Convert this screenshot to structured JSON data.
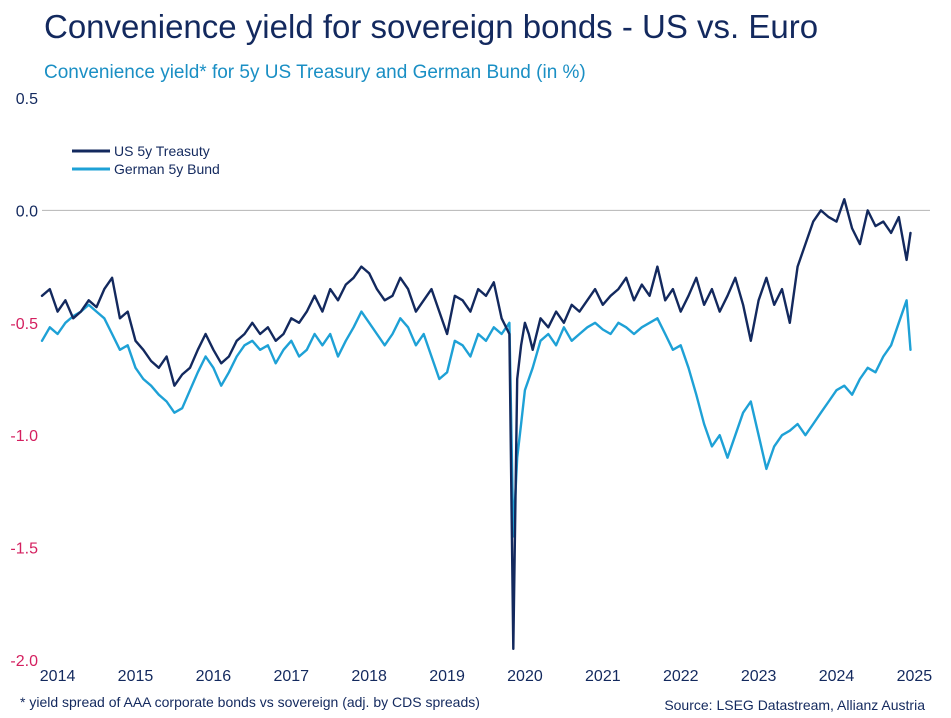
{
  "title": "Convenience yield for sovereign bonds - US vs. Euro",
  "subtitle": "Convenience yield* for 5y US Treasury and German Bund (in %)",
  "footnote": "* yield spread of AAA corporate bonds vs sovereign (adj. by CDS spreads)",
  "source": "Source: LSEG Datastream, Allianz Austria",
  "colors": {
    "us": "#13295e",
    "de": "#1ea1d6",
    "positive_tick": "#13295e",
    "negative_tick": "#d41f5f",
    "zero_line": "#b5b5b5"
  },
  "chart_data": {
    "type": "line",
    "xlabel": "",
    "ylabel": "",
    "xlim": [
      2013.8,
      2025.2
    ],
    "ylim": [
      -2.0,
      0.5
    ],
    "y_ticks": [
      "0.5",
      "0.0",
      "-0.5",
      "-1.0",
      "-1.5",
      "-2.0"
    ],
    "y_tick_values": [
      0.5,
      0.0,
      -0.5,
      -1.0,
      -1.5,
      -2.0
    ],
    "x_ticks": [
      "2014",
      "2015",
      "2016",
      "2017",
      "2018",
      "2019",
      "2020",
      "2021",
      "2022",
      "2023",
      "2024",
      "2025"
    ],
    "x_tick_values": [
      2014,
      2015,
      2016,
      2017,
      2018,
      2019,
      2020,
      2021,
      2022,
      2023,
      2024,
      2025
    ],
    "legend_position": "top-left",
    "series": [
      {
        "name": "US 5y Treasuty",
        "x": [
          2013.8,
          2013.9,
          2014.0,
          2014.1,
          2014.2,
          2014.3,
          2014.4,
          2014.5,
          2014.6,
          2014.7,
          2014.8,
          2014.9,
          2015.0,
          2015.1,
          2015.2,
          2015.3,
          2015.4,
          2015.5,
          2015.6,
          2015.7,
          2015.8,
          2015.9,
          2016.0,
          2016.1,
          2016.2,
          2016.3,
          2016.4,
          2016.5,
          2016.6,
          2016.7,
          2016.8,
          2016.9,
          2017.0,
          2017.1,
          2017.2,
          2017.3,
          2017.4,
          2017.5,
          2017.6,
          2017.7,
          2017.8,
          2017.9,
          2018.0,
          2018.1,
          2018.2,
          2018.3,
          2018.4,
          2018.5,
          2018.6,
          2018.7,
          2018.8,
          2018.9,
          2019.0,
          2019.1,
          2019.2,
          2019.3,
          2019.4,
          2019.5,
          2019.6,
          2019.7,
          2019.8,
          2019.85,
          2019.9,
          2019.95,
          2020.0,
          2020.05,
          2020.1,
          2020.2,
          2020.3,
          2020.4,
          2020.5,
          2020.6,
          2020.7,
          2020.8,
          2020.9,
          2021.0,
          2021.1,
          2021.2,
          2021.3,
          2021.4,
          2021.5,
          2021.6,
          2021.7,
          2021.8,
          2021.9,
          2022.0,
          2022.1,
          2022.2,
          2022.3,
          2022.4,
          2022.5,
          2022.6,
          2022.7,
          2022.8,
          2022.9,
          2023.0,
          2023.1,
          2023.2,
          2023.3,
          2023.4,
          2023.5,
          2023.6,
          2023.7,
          2023.8,
          2023.9,
          2024.0,
          2024.1,
          2024.2,
          2024.3,
          2024.4,
          2024.5,
          2024.6,
          2024.7,
          2024.8,
          2024.9,
          2024.95
        ],
        "values": [
          -0.38,
          -0.35,
          -0.45,
          -0.4,
          -0.48,
          -0.45,
          -0.4,
          -0.43,
          -0.35,
          -0.3,
          -0.48,
          -0.45,
          -0.58,
          -0.62,
          -0.67,
          -0.7,
          -0.65,
          -0.78,
          -0.73,
          -0.7,
          -0.62,
          -0.55,
          -0.62,
          -0.68,
          -0.65,
          -0.58,
          -0.55,
          -0.5,
          -0.55,
          -0.52,
          -0.58,
          -0.55,
          -0.48,
          -0.5,
          -0.45,
          -0.38,
          -0.45,
          -0.35,
          -0.4,
          -0.33,
          -0.3,
          -0.25,
          -0.28,
          -0.35,
          -0.4,
          -0.38,
          -0.3,
          -0.35,
          -0.45,
          -0.4,
          -0.35,
          -0.45,
          -0.55,
          -0.38,
          -0.4,
          -0.45,
          -0.35,
          -0.38,
          -0.32,
          -0.48,
          -0.55,
          -1.95,
          -0.75,
          -0.6,
          -0.5,
          -0.55,
          -0.62,
          -0.48,
          -0.52,
          -0.45,
          -0.5,
          -0.42,
          -0.45,
          -0.4,
          -0.35,
          -0.42,
          -0.38,
          -0.35,
          -0.3,
          -0.4,
          -0.33,
          -0.38,
          -0.25,
          -0.4,
          -0.35,
          -0.45,
          -0.38,
          -0.3,
          -0.42,
          -0.35,
          -0.45,
          -0.38,
          -0.3,
          -0.42,
          -0.58,
          -0.4,
          -0.3,
          -0.42,
          -0.35,
          -0.5,
          -0.25,
          -0.15,
          -0.05,
          0.0,
          -0.03,
          -0.05,
          0.05,
          -0.08,
          -0.15,
          0.0,
          -0.07,
          -0.05,
          -0.1,
          -0.03,
          -0.22,
          -0.1
        ]
      },
      {
        "name": "German 5y Bund",
        "x": [
          2013.8,
          2013.9,
          2014.0,
          2014.1,
          2014.2,
          2014.3,
          2014.4,
          2014.5,
          2014.6,
          2014.7,
          2014.8,
          2014.9,
          2015.0,
          2015.1,
          2015.2,
          2015.3,
          2015.4,
          2015.5,
          2015.6,
          2015.7,
          2015.8,
          2015.9,
          2016.0,
          2016.1,
          2016.2,
          2016.3,
          2016.4,
          2016.5,
          2016.6,
          2016.7,
          2016.8,
          2016.9,
          2017.0,
          2017.1,
          2017.2,
          2017.3,
          2017.4,
          2017.5,
          2017.6,
          2017.7,
          2017.8,
          2017.9,
          2018.0,
          2018.1,
          2018.2,
          2018.3,
          2018.4,
          2018.5,
          2018.6,
          2018.7,
          2018.8,
          2018.9,
          2019.0,
          2019.1,
          2019.2,
          2019.3,
          2019.4,
          2019.5,
          2019.6,
          2019.7,
          2019.8,
          2019.85,
          2019.9,
          2019.95,
          2020.0,
          2020.05,
          2020.1,
          2020.2,
          2020.3,
          2020.4,
          2020.5,
          2020.6,
          2020.7,
          2020.8,
          2020.9,
          2021.0,
          2021.1,
          2021.2,
          2021.3,
          2021.4,
          2021.5,
          2021.6,
          2021.7,
          2021.8,
          2021.9,
          2022.0,
          2022.1,
          2022.2,
          2022.3,
          2022.4,
          2022.5,
          2022.6,
          2022.7,
          2022.8,
          2022.9,
          2023.0,
          2023.1,
          2023.2,
          2023.3,
          2023.4,
          2023.5,
          2023.6,
          2023.7,
          2023.8,
          2023.9,
          2024.0,
          2024.1,
          2024.2,
          2024.3,
          2024.4,
          2024.5,
          2024.6,
          2024.7,
          2024.8,
          2024.9,
          2024.95
        ],
        "values": [
          -0.58,
          -0.52,
          -0.55,
          -0.5,
          -0.47,
          -0.45,
          -0.42,
          -0.45,
          -0.48,
          -0.55,
          -0.62,
          -0.6,
          -0.7,
          -0.75,
          -0.78,
          -0.82,
          -0.85,
          -0.9,
          -0.88,
          -0.8,
          -0.72,
          -0.65,
          -0.7,
          -0.78,
          -0.72,
          -0.65,
          -0.6,
          -0.58,
          -0.62,
          -0.6,
          -0.68,
          -0.62,
          -0.58,
          -0.65,
          -0.62,
          -0.55,
          -0.6,
          -0.55,
          -0.65,
          -0.58,
          -0.52,
          -0.45,
          -0.5,
          -0.55,
          -0.6,
          -0.55,
          -0.48,
          -0.52,
          -0.6,
          -0.55,
          -0.65,
          -0.75,
          -0.72,
          -0.58,
          -0.6,
          -0.65,
          -0.55,
          -0.58,
          -0.52,
          -0.55,
          -0.5,
          -1.45,
          -1.1,
          -0.95,
          -0.8,
          -0.75,
          -0.7,
          -0.58,
          -0.55,
          -0.6,
          -0.52,
          -0.58,
          -0.55,
          -0.52,
          -0.5,
          -0.53,
          -0.55,
          -0.5,
          -0.52,
          -0.55,
          -0.52,
          -0.5,
          -0.48,
          -0.55,
          -0.62,
          -0.6,
          -0.7,
          -0.82,
          -0.95,
          -1.05,
          -1.0,
          -1.1,
          -1.0,
          -0.9,
          -0.85,
          -1.0,
          -1.15,
          -1.05,
          -1.0,
          -0.98,
          -0.95,
          -1.0,
          -0.95,
          -0.9,
          -0.85,
          -0.8,
          -0.78,
          -0.82,
          -0.75,
          -0.7,
          -0.72,
          -0.65,
          -0.6,
          -0.5,
          -0.4,
          -0.62
        ]
      }
    ]
  }
}
